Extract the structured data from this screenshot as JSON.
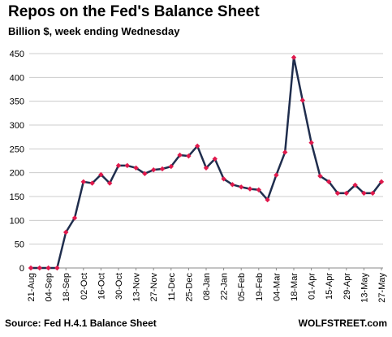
{
  "header": {
    "title": "Repos on the Fed's Balance Sheet",
    "subtitle": "Billion $, week ending Wednesday"
  },
  "footer": {
    "source": "Source: Fed H.4.1 Balance Sheet",
    "brand": "WOLFSTREET.com"
  },
  "colors": {
    "line": "#1f2d4d",
    "marker": "#e0194c",
    "grid": "#cccccc"
  },
  "chart_data": {
    "type": "line",
    "title": "Repos on the Fed's Balance Sheet",
    "subtitle": "Billion $, week ending Wednesday",
    "ylim": [
      0,
      450
    ],
    "yticks": [
      0,
      50,
      100,
      150,
      200,
      250,
      300,
      350,
      400,
      450
    ],
    "grid": true,
    "xtick_labels": [
      "21-Aug",
      "04-Sep",
      "18-Sep",
      "02-Oct",
      "16-Oct",
      "30-Oct",
      "13-Nov",
      "27-Nov",
      "11-Dec",
      "25-Dec",
      "08-Jan",
      "22-Jan",
      "05-Feb",
      "19-Feb",
      "04-Mar",
      "18-Mar",
      "01-Apr",
      "15-Apr",
      "29-Apr",
      "13-May",
      "27-May"
    ],
    "x": [
      "21-Aug",
      "28-Aug",
      "04-Sep",
      "11-Sep",
      "18-Sep",
      "25-Sep",
      "02-Oct",
      "09-Oct",
      "16-Oct",
      "23-Oct",
      "30-Oct",
      "06-Nov",
      "13-Nov",
      "20-Nov",
      "27-Nov",
      "04-Dec",
      "11-Dec",
      "18-Dec",
      "25-Dec",
      "01-Jan",
      "08-Jan",
      "15-Jan",
      "22-Jan",
      "29-Jan",
      "05-Feb",
      "12-Feb",
      "19-Feb",
      "26-Feb",
      "04-Mar",
      "11-Mar",
      "18-Mar",
      "25-Mar",
      "01-Apr",
      "08-Apr",
      "15-Apr",
      "22-Apr",
      "29-Apr",
      "06-May",
      "13-May",
      "20-May",
      "27-May"
    ],
    "values": [
      0,
      0,
      0,
      0,
      75,
      105,
      181,
      178,
      196,
      178,
      215,
      215,
      210,
      198,
      206,
      208,
      213,
      237,
      235,
      256,
      210,
      229,
      187,
      175,
      170,
      166,
      164,
      143,
      195,
      243,
      442,
      352,
      263,
      193,
      181,
      157,
      157,
      174,
      157,
      157,
      181
    ]
  }
}
